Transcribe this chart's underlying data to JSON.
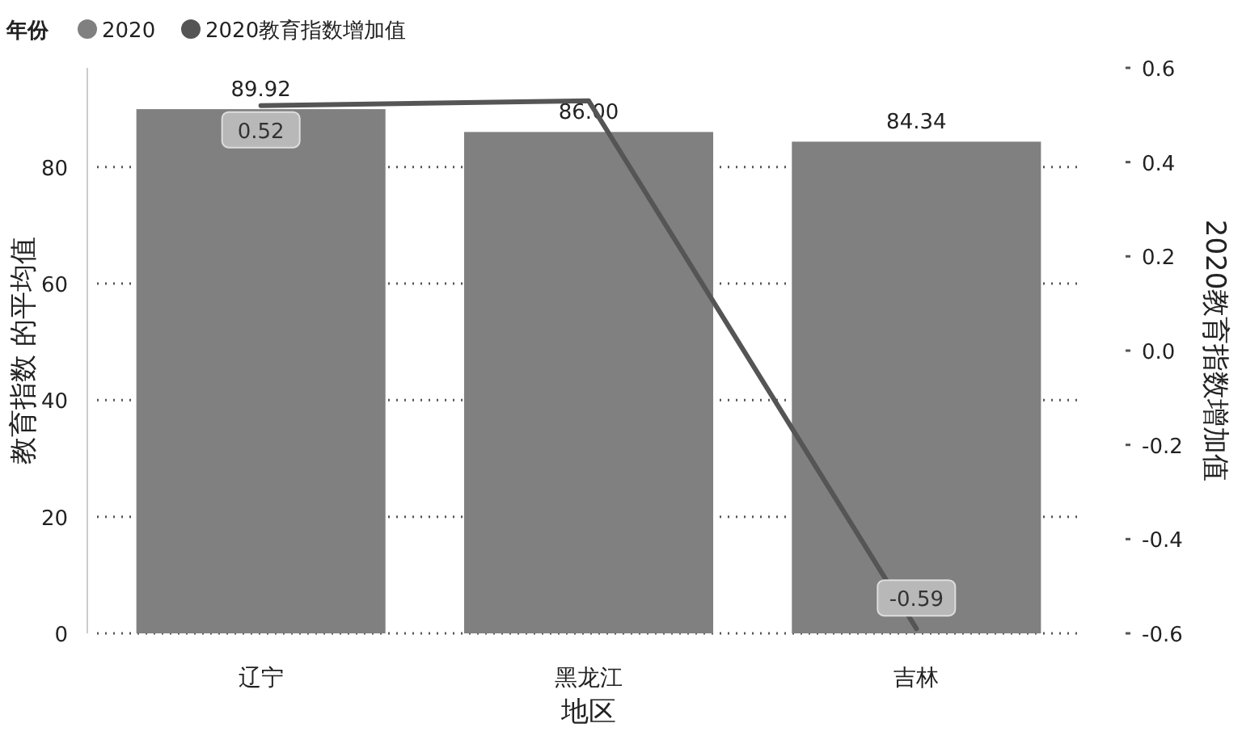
{
  "chart_data": {
    "type": "bar",
    "categories": [
      "辽宁",
      "黑龙江",
      "吉林"
    ],
    "xlabel": "地区",
    "ylabel": "教育指数 的平均值",
    "y2label": "2020教育指数增加值",
    "legend_title": "年份",
    "legend": "top left",
    "grid": "y",
    "ylim": [
      0,
      97
    ],
    "yticks": [
      0,
      20,
      40,
      60,
      80
    ],
    "y2lim": [
      -0.6,
      0.6
    ],
    "y2ticks": [
      {
        "value": 0.6,
        "label": "0.6"
      },
      {
        "value": 0.4,
        "label": "0.4"
      },
      {
        "value": 0.2,
        "label": "0.2"
      },
      {
        "value": 0,
        "label": "0.0"
      },
      {
        "value": -0.2,
        "label": "-0.2"
      },
      {
        "value": -0.4,
        "label": "-0.4"
      },
      {
        "value": -0.6,
        "label": "-0.6"
      }
    ],
    "series": [
      {
        "name": "2020",
        "color": "#808080",
        "values": [
          89.92,
          86.0,
          84.34
        ],
        "value_labels": [
          "89.92",
          "86.00",
          "84.34"
        ]
      },
      {
        "name": "2020教育指数增加值",
        "type": "line",
        "axis": "y2",
        "color": "#555555",
        "values": [
          0.52,
          0.53,
          -0.59
        ],
        "value_labels": [
          "0.52",
          null,
          "-0.59"
        ]
      }
    ]
  }
}
